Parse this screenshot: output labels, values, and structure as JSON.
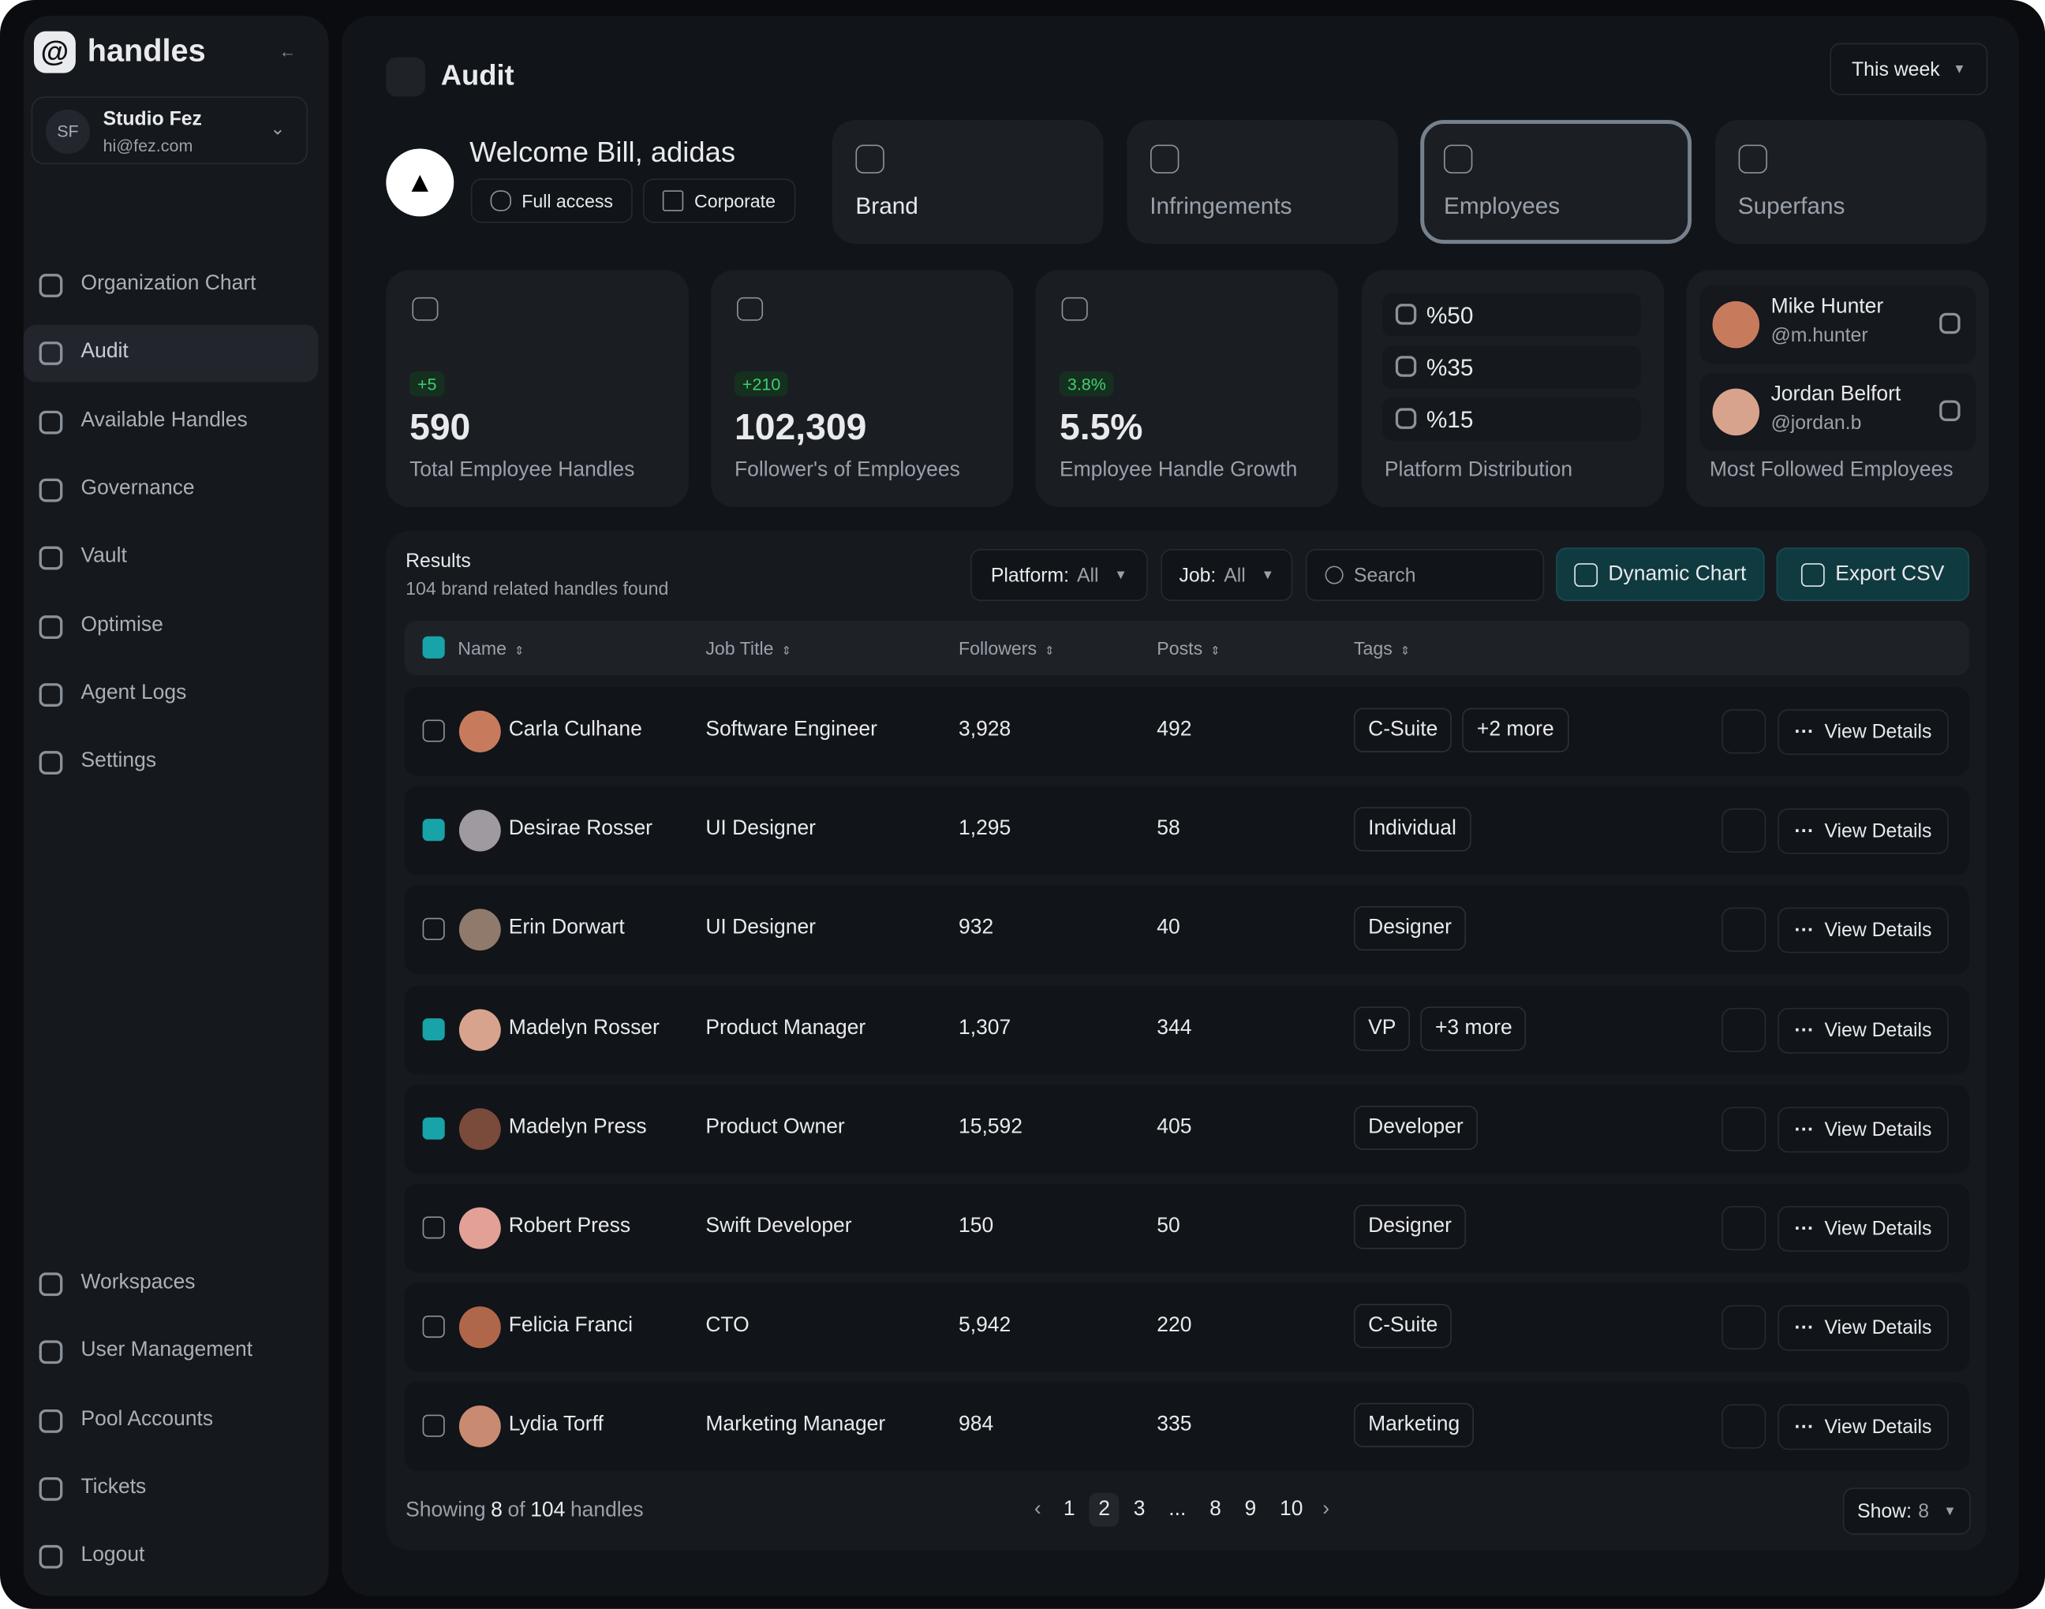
{
  "sidebar": {
    "brand": "handles",
    "account": {
      "initials": "SF",
      "name": "Studio Fez",
      "email": "hi@fez.com"
    },
    "nav": [
      "Organization Chart",
      "Audit",
      "Available Handles",
      "Governance",
      "Vault",
      "Optimise",
      "Agent Logs",
      "Settings"
    ],
    "bottom_nav": [
      "Workspaces",
      "User Management",
      "Pool Accounts",
      "Tickets",
      "Logout"
    ]
  },
  "header": {
    "title": "Audit",
    "period": "This week"
  },
  "welcome": {
    "greeting": "Welcome Bill, adidas",
    "badges": [
      "Full access",
      "Corporate"
    ]
  },
  "tabs": [
    "Brand",
    "Infringements",
    "Employees",
    "Superfans"
  ],
  "stats": [
    {
      "delta": "+5",
      "value": "590",
      "label": "Total Employee Handles"
    },
    {
      "delta": "+210",
      "value": "102,309",
      "label": "Follower's of Employees"
    },
    {
      "delta": "3.8%",
      "value": "5.5%",
      "label": "Employee Handle Growth"
    }
  ],
  "platform_distribution": {
    "items": [
      "%50",
      "%35",
      "%15"
    ],
    "label": "Platform Distribution"
  },
  "most_followed": {
    "people": [
      {
        "name": "Mike Hunter",
        "handle": "@m.hunter"
      },
      {
        "name": "Jordan Belfort",
        "handle": "@jordan.b"
      }
    ],
    "label": "Most Followed Employees"
  },
  "results": {
    "title": "Results",
    "subtitle": "104 brand related handles found",
    "platform": {
      "label": "Platform:",
      "value": "All"
    },
    "job": {
      "label": "Job:",
      "value": "All"
    },
    "search": "Search",
    "buttons": [
      "Dynamic Chart",
      "Export CSV"
    ]
  },
  "table": {
    "columns": [
      "Name",
      "Job Title",
      "Followers",
      "Posts",
      "Tags"
    ],
    "action": "View Details",
    "rows": [
      {
        "name": "Carla Culhane",
        "job": "Software Engineer",
        "followers": "3,928",
        "posts": "492",
        "tags": [
          "C-Suite",
          "+2 more"
        ],
        "checked": false
      },
      {
        "name": "Desirae Rosser",
        "job": "UI Designer",
        "followers": "1,295",
        "posts": "58",
        "tags": [
          "Individual"
        ],
        "checked": true
      },
      {
        "name": "Erin Dorwart",
        "job": "UI Designer",
        "followers": "932",
        "posts": "40",
        "tags": [
          "Designer"
        ],
        "checked": false
      },
      {
        "name": "Madelyn Rosser",
        "job": "Product Manager",
        "followers": "1,307",
        "posts": "344",
        "tags": [
          "VP",
          "+3 more"
        ],
        "checked": true
      },
      {
        "name": "Madelyn Press",
        "job": "Product Owner",
        "followers": "15,592",
        "posts": "405",
        "tags": [
          "Developer"
        ],
        "checked": true
      },
      {
        "name": "Robert Press",
        "job": "Swift Developer",
        "followers": "150",
        "posts": "50",
        "tags": [
          "Designer"
        ],
        "checked": false
      },
      {
        "name": "Felicia Franci",
        "job": "CTO",
        "followers": "5,942",
        "posts": "220",
        "tags": [
          "C-Suite"
        ],
        "checked": false
      },
      {
        "name": "Lydia Torff",
        "job": "Marketing Manager",
        "followers": "984",
        "posts": "335",
        "tags": [
          "Marketing"
        ],
        "checked": false
      }
    ]
  },
  "footer": {
    "showing": [
      "Showing",
      "8",
      "of",
      "104",
      "handles"
    ],
    "pages": [
      "1",
      "2",
      "3",
      "...",
      "8",
      "9",
      "10"
    ],
    "show": {
      "label": "Show:",
      "value": "8"
    }
  }
}
